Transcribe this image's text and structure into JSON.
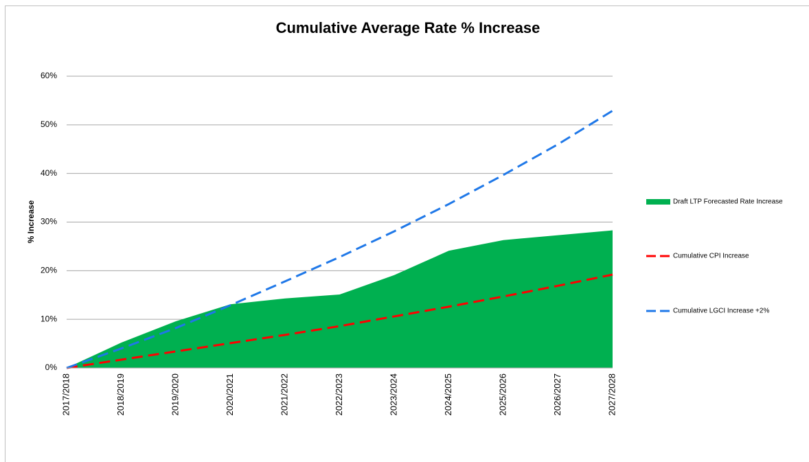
{
  "chart_data": {
    "type": "line",
    "title": "Cumulative Average Rate % Increase",
    "y_label": "% Increase",
    "categories": [
      "2017/2018",
      "2018/2019",
      "2019/2020",
      "2020/2021",
      "2021/2022",
      "2022/2023",
      "2023/2024",
      "2024/2025",
      "2025/2026",
      "2026/2027",
      "2027/2028"
    ],
    "series": [
      {
        "name": "Draft LTP Forecasted Rate Increase",
        "type": "area",
        "color": "#00b050",
        "values": [
          0,
          5.2,
          9.6,
          13.1,
          14.3,
          15.1,
          19.1,
          24.1,
          26.3,
          27.3,
          28.3
        ]
      },
      {
        "name": "Cumulative CPI Increase",
        "type": "line",
        "dashed": true,
        "color": "#ff0000",
        "values": [
          0,
          1.7,
          3.4,
          5.1,
          6.8,
          8.6,
          10.6,
          12.6,
          14.7,
          16.9,
          19.2
        ]
      },
      {
        "name": "Cumulative LGCI Increase +2%",
        "type": "line",
        "dashed": true,
        "color": "#1f78e8",
        "values": [
          0,
          4.0,
          8.2,
          12.9,
          17.8,
          22.8,
          28.1,
          33.7,
          39.7,
          46.0,
          52.9
        ]
      }
    ],
    "ylim": [
      0,
      60
    ],
    "yticks": [
      {
        "value": 0,
        "label": "0%"
      },
      {
        "value": 10,
        "label": "10%"
      },
      {
        "value": 20,
        "label": "20%"
      },
      {
        "value": 30,
        "label": "30%"
      },
      {
        "value": 40,
        "label": "40%"
      },
      {
        "value": 50,
        "label": "50%"
      },
      {
        "value": 60,
        "label": "60%"
      }
    ],
    "grid": true,
    "legend": "right"
  }
}
